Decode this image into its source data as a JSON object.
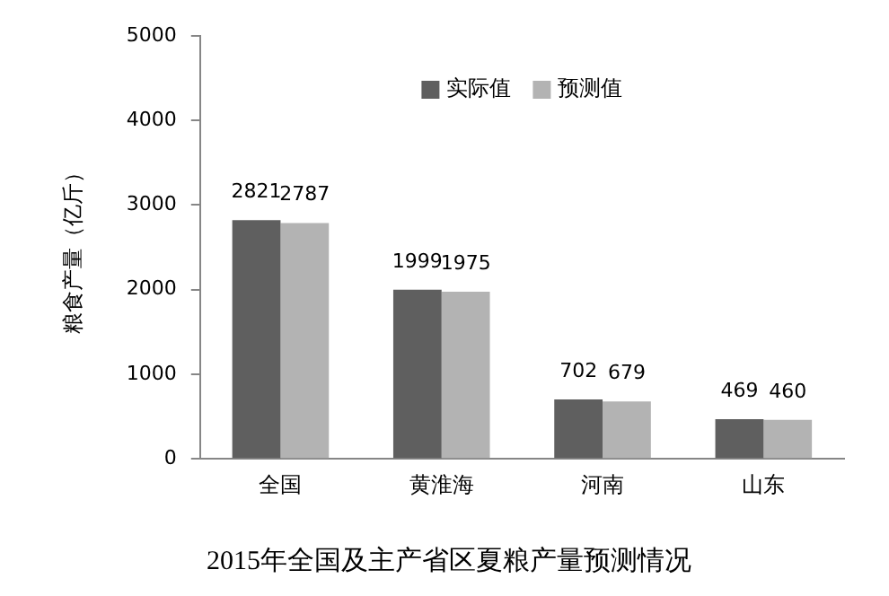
{
  "chart_data": {
    "type": "bar",
    "title": "2015年全国及主产省区夏粮产量预测情况",
    "ylabel": "粮食产量（亿斤）",
    "categories": [
      "全国",
      "黄淮海",
      "河南",
      "山东"
    ],
    "series": [
      {
        "name": "实际值",
        "color": "#5f5f5f",
        "values": [
          2821,
          1999,
          702,
          469
        ]
      },
      {
        "name": "预测值",
        "color": "#b3b3b3",
        "values": [
          2787,
          1975,
          679,
          460
        ]
      }
    ],
    "ylim": [
      0,
      5000
    ],
    "yticks": [
      0,
      1000,
      2000,
      3000,
      4000,
      5000
    ],
    "grid": false,
    "legend": "top",
    "data_labels": true
  }
}
